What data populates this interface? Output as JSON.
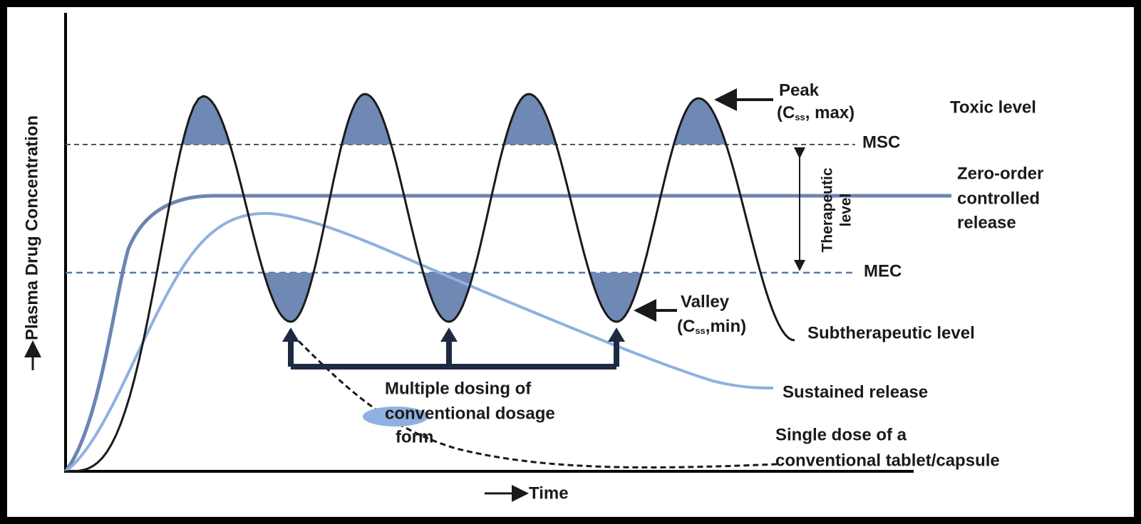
{
  "y_axis_label": "Plasma Drug Concentration",
  "x_axis_label": "Time",
  "peak": {
    "label": "Peak",
    "detail": [
      "(C",
      "ss",
      ", max)"
    ]
  },
  "toxic_level": "Toxic level",
  "msc": "MSC",
  "zero_order": [
    "Zero-order",
    "controlled",
    "release"
  ],
  "therapeutic_level": [
    "Therapeutic",
    "level"
  ],
  "mec": "MEC",
  "valley": {
    "label": "Valley",
    "detail": [
      "(C",
      "ss",
      ",min)"
    ]
  },
  "subtherapeutic_level": "Subtherapeutic level",
  "multiple_dosing": [
    "Multiple dosing of",
    "conventional dosage",
    "form"
  ],
  "sustained_release": "Sustained release",
  "single_dose": [
    "Single dose of a",
    "conventional tablet/capsule"
  ]
}
